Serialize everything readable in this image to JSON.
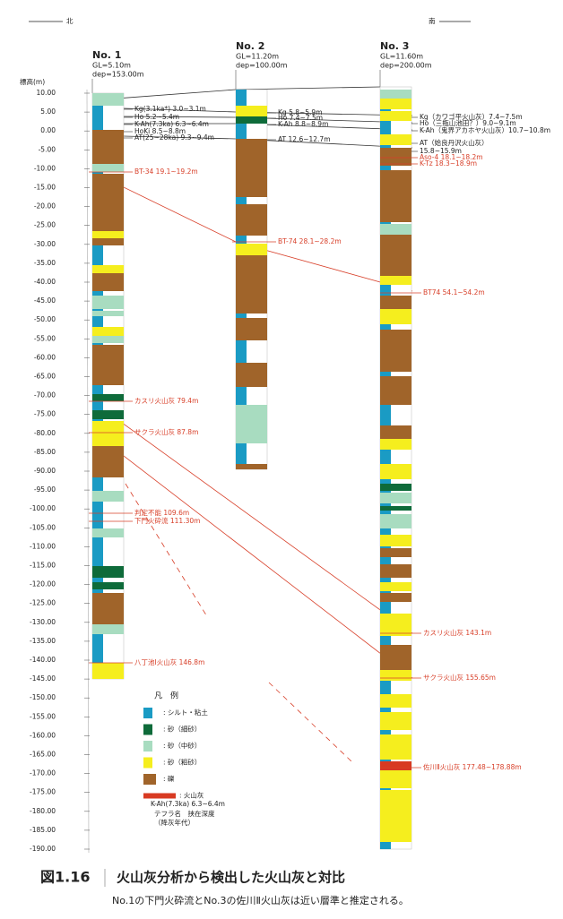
{
  "direction": {
    "north": "北",
    "south": "南"
  },
  "axis": {
    "title": "標高(m)",
    "ticks": [
      "10.00",
      "5.00",
      "0.00",
      "-5.00",
      "-10.00",
      "-15.00",
      "-20.00",
      "-25.00",
      "-30.00",
      "-35.00",
      "-40.00",
      "-45.00",
      "-50.00",
      "-55.00",
      "-60.00",
      "-65.00",
      "-70.00",
      "-75.00",
      "-80.00",
      "-85.00",
      "-90.00",
      "-95.00",
      "-100.00",
      "-105.00",
      "-110.00",
      "-115.00",
      "-120.00",
      "-125.00",
      "-130.00",
      "-135.00",
      "-140.00",
      "-145.00",
      "-150.00",
      "-155.00",
      "-160.00",
      "-165.00",
      "-170.00",
      "-175.00",
      "-180.00",
      "-185.00",
      "-190.00"
    ]
  },
  "boreholes": [
    {
      "name": "No. 1",
      "gl": "GL=5.10m",
      "depth": "dep=153.00m",
      "tephra": [
        "Kg(3.1ka*) 3.0~3.1m",
        "Ho 5.2~5.4m",
        "K-Ah(7.3ka) 6.3~6.4m",
        "HoKi 8.5~8.8m",
        "AT(25~28ka) 9.3~9.4m"
      ],
      "markers": [
        "BT-34 19.1~19.2m",
        "カスリ火山灰 79.4m",
        "サクラ火山灰 87.8m",
        "判定不能 109.6m",
        "下門火砕流 111.30m",
        "八丁池Ⅰ火山灰 146.8m"
      ]
    },
    {
      "name": "No. 2",
      "gl": "GL=11.20m",
      "depth": "dep=100.00m",
      "tephra": [
        "Kg 5.8~5.9m",
        "Ho 7.4~7.5m",
        "K-Ah 8.8~8.9m",
        "AT 12.6~12.7m"
      ],
      "markers": [
        "BT-74 28.1~28.2m"
      ]
    },
    {
      "name": "No. 3",
      "gl": "GL=11.60m",
      "depth": "dep=200.00m",
      "tephra": [
        "Kg（カワゴ平火山灰）7.4~7.5m",
        "Ho（三瓶山池田？）9.0~9.1m",
        "K-Ah（鬼界アカホヤ火山灰）10.7~10.8m",
        "AT（姶良丹沢火山灰）",
        "15.8~15.9m"
      ],
      "markers": [
        "Aso-4 18.1~18.2m",
        "K-Tz 18.3~18.9m",
        "BT74 54.1~54.2m",
        "カスリ火山灰 143.1m",
        "サクラ火山灰 155.65m",
        "佐川Ⅱ火山灰 177.48~178.88m"
      ]
    }
  ],
  "legend": {
    "title": "凡　例",
    "items": [
      ": シルト・粘土",
      ": 砂（細砂）",
      ": 砂（中砂）",
      ": 砂（粗砂）",
      ": 礫",
      ": 火山灰"
    ],
    "example": {
      "name": "K-Ah(7.3ka) 6.3~6.4m",
      "caption": "テフラ名　挟在深度",
      "age": "（降灰年代）"
    }
  },
  "figure": {
    "number": "図1.16",
    "title": "火山灰分析から検出した火山灰と対比",
    "note": "No.1の下門火砕流とNo.3の佐川Ⅱ火山灰は近い層準と推定される。"
  }
}
